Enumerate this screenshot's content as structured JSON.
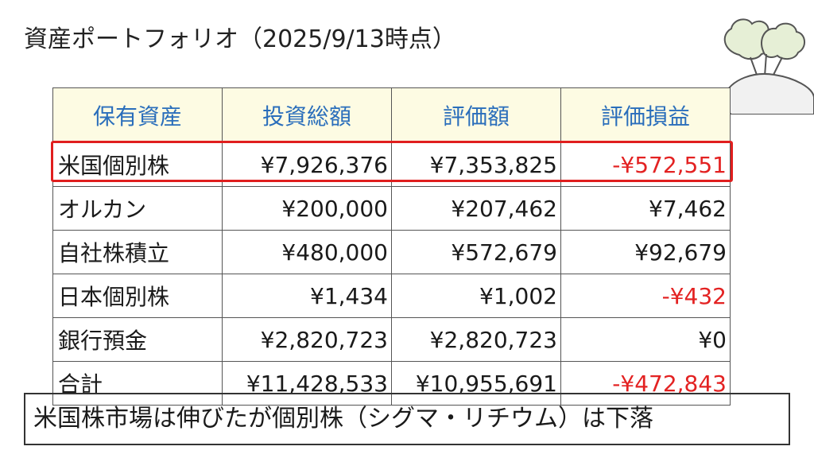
{
  "title": "資産ポートフォリオ（2025/9/13時点）",
  "table": {
    "headers": [
      "保有資産",
      "投資総額",
      "評価額",
      "評価損益"
    ],
    "rows": [
      {
        "name": "米国個別株",
        "invest": "¥7,926,376",
        "value": "¥7,353,825",
        "gain": "-¥572,551",
        "negative": true
      },
      {
        "name": "オルカン",
        "invest": "¥200,000",
        "value": "¥207,462",
        "gain": "¥7,462",
        "negative": false
      },
      {
        "name": "自社株積立",
        "invest": "¥480,000",
        "value": "¥572,679",
        "gain": "¥92,679",
        "negative": false
      },
      {
        "name": "日本個別株",
        "invest": "¥1,434",
        "value": "¥1,002",
        "gain": "-¥432",
        "negative": true
      },
      {
        "name": "銀行預金",
        "invest": "¥2,820,723",
        "value": "¥2,820,723",
        "gain": "¥0",
        "negative": false
      },
      {
        "name": "合計",
        "invest": "¥11,428,533",
        "value": "¥10,955,691",
        "gain": "-¥472,843",
        "negative": true
      }
    ]
  },
  "note": "米国株市場は伸びたが個別株（シグマ・リチウム）は下落",
  "colors": {
    "header_text": "#2a6ebb",
    "header_bg": "#fdfbe3",
    "negative": "#e32222",
    "highlight_border": "#e01e1e"
  },
  "icons": {
    "decoration": "turnip-icon"
  }
}
